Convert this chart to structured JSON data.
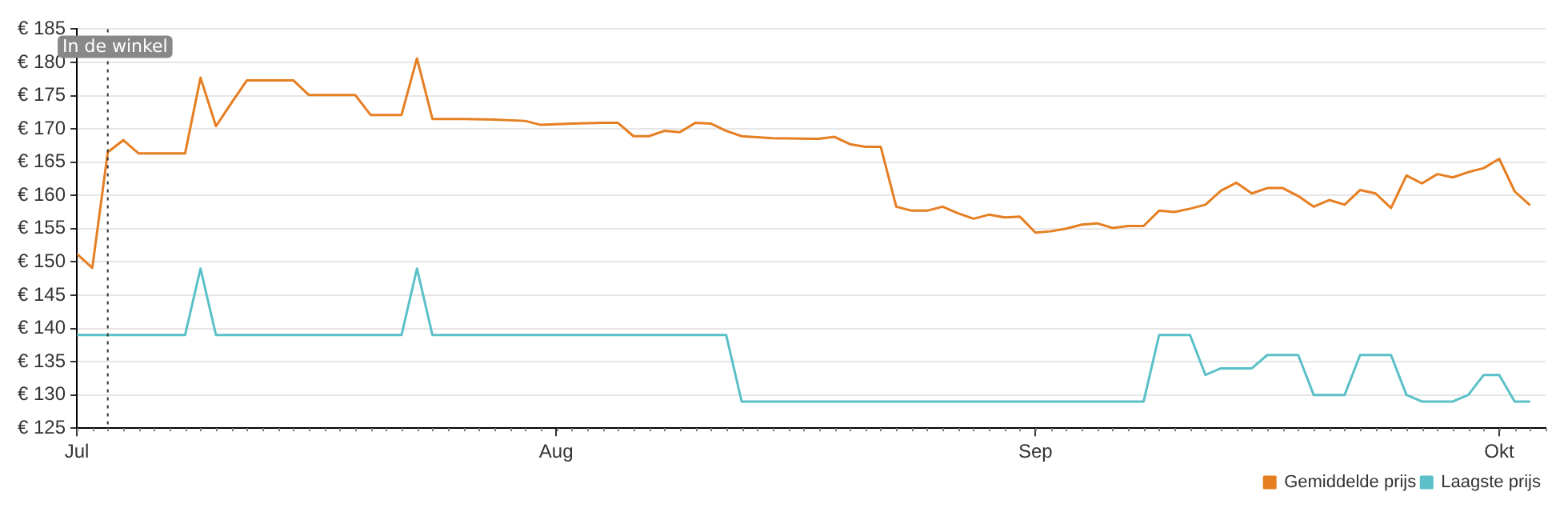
{
  "chart_data": {
    "type": "line",
    "xlim": [
      "--07-01",
      "--10-04"
    ],
    "xticks": [
      {
        "value": "--07-01",
        "label": "Jul"
      },
      {
        "value": "--08-01",
        "label": "Aug"
      },
      {
        "value": "--09-01",
        "label": "Sep"
      },
      {
        "value": "--10-01",
        "label": "Okt"
      }
    ],
    "ylim": [
      125,
      185
    ],
    "yticks": [
      {
        "value": 125,
        "label": "€ 125"
      },
      {
        "value": 130,
        "label": "€ 130"
      },
      {
        "value": 135,
        "label": "€ 135"
      },
      {
        "value": 140,
        "label": "€ 140"
      },
      {
        "value": 145,
        "label": "€ 145"
      },
      {
        "value": 150,
        "label": "€ 150"
      },
      {
        "value": 155,
        "label": "€ 155"
      },
      {
        "value": 160,
        "label": "€ 160"
      },
      {
        "value": 165,
        "label": "€ 165"
      },
      {
        "value": 170,
        "label": "€ 170"
      },
      {
        "value": 175,
        "label": "€ 175"
      },
      {
        "value": 180,
        "label": "€ 180"
      },
      {
        "value": 185,
        "label": "€ 185"
      }
    ],
    "grid": "y",
    "legend": "bottom right",
    "marker": "none",
    "line_style": "solid",
    "ref_lines": [
      {
        "axis": "x",
        "value": "--07-03",
        "label": "In de winkel",
        "line_style": "dotted",
        "color": "#333333"
      }
    ],
    "series": [
      {
        "name": "Gemiddelde prijs",
        "color": "#e67e22",
        "x": [
          "--07-01",
          "--07-02",
          "--07-03",
          "--07-04",
          "--07-05",
          "--07-08",
          "--07-09",
          "--07-10",
          "--07-11",
          "--07-12",
          "--07-15",
          "--07-16",
          "--07-19",
          "--07-20",
          "--07-22",
          "--07-23",
          "--07-24",
          "--07-26",
          "--07-28",
          "--07-30",
          "--07-31",
          "--08-02",
          "--08-04",
          "--08-05",
          "--08-06",
          "--08-07",
          "--08-08",
          "--08-09",
          "--08-10",
          "--08-11",
          "--08-12",
          "--08-13",
          "--08-15",
          "--08-18",
          "--08-19",
          "--08-20",
          "--08-21",
          "--08-22",
          "--08-23",
          "--08-24",
          "--08-25",
          "--08-26",
          "--08-27",
          "--08-28",
          "--08-29",
          "--08-30",
          "--08-31",
          "--09-01",
          "--09-02",
          "--09-03",
          "--09-04",
          "--09-05",
          "--09-06",
          "--09-07",
          "--09-08",
          "--09-09",
          "--09-10",
          "--09-11",
          "--09-12",
          "--09-13",
          "--09-14",
          "--09-15",
          "--09-16",
          "--09-17",
          "--09-18",
          "--09-19",
          "--09-20",
          "--09-21",
          "--09-22",
          "--09-23",
          "--09-24",
          "--09-25",
          "--09-26",
          "--09-27",
          "--09-28",
          "--09-29",
          "--09-30",
          "--10-01",
          "--10-02",
          "--10-03"
        ],
        "values": [
          151.2,
          149.1,
          166.5,
          168.3,
          166.3,
          166.3,
          177.7,
          170.4,
          173.9,
          177.3,
          177.3,
          175.1,
          175.1,
          172.1,
          172.1,
          180.6,
          171.5,
          171.5,
          171.4,
          171.2,
          170.6,
          170.8,
          170.9,
          170.9,
          168.9,
          168.9,
          169.7,
          169.5,
          170.9,
          170.8,
          169.7,
          168.9,
          168.6,
          168.5,
          168.8,
          167.7,
          167.3,
          167.3,
          158.3,
          157.7,
          157.7,
          158.3,
          157.3,
          156.5,
          157.1,
          156.7,
          156.8,
          154.4,
          154.6,
          155.0,
          155.6,
          155.8,
          155.1,
          155.4,
          155.4,
          157.7,
          157.5,
          158.0,
          158.6,
          160.7,
          161.9,
          160.3,
          161.1,
          161.1,
          159.9,
          158.3,
          159.3,
          158.6,
          160.8,
          160.3,
          158.1,
          163.0,
          161.8,
          163.2,
          162.7,
          163.5,
          164.1,
          165.5,
          160.6,
          158.5
        ]
      },
      {
        "name": "Laagste prijs",
        "color": "#5bc0c8",
        "x": [
          "--07-01",
          "--07-08",
          "--07-09",
          "--07-10",
          "--07-22",
          "--07-23",
          "--07-24",
          "--08-12",
          "--08-13",
          "--09-08",
          "--09-09",
          "--09-11",
          "--09-12",
          "--09-13",
          "--09-15",
          "--09-16",
          "--09-18",
          "--09-19",
          "--09-21",
          "--09-22",
          "--09-24",
          "--09-25",
          "--09-26",
          "--09-28",
          "--09-29",
          "--09-30",
          "--10-01",
          "--10-02",
          "--10-03"
        ],
        "values": [
          139,
          139,
          149,
          139,
          139,
          149,
          139,
          139,
          129,
          129,
          139,
          139,
          133,
          134,
          134,
          136,
          136,
          130,
          130,
          136,
          136,
          130,
          129,
          129,
          130,
          133,
          133,
          129,
          129
        ]
      }
    ]
  }
}
